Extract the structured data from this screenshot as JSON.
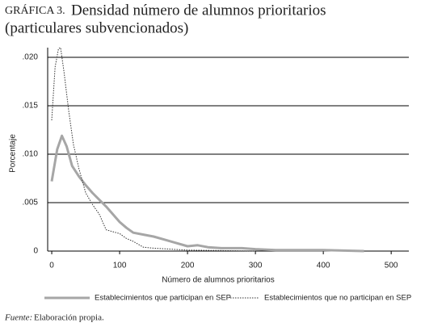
{
  "chart_data": {
    "type": "line",
    "label": "GRÁFICA 3.",
    "title": "Densidad número de alumnos prioritarios",
    "subtitle": "(particulares subvencionados)",
    "xlabel": "Número de alumnos prioritarios",
    "ylabel": "Porcentaje",
    "xlim": [
      -6,
      526
    ],
    "xticks": [
      0,
      100,
      200,
      300,
      400,
      500
    ],
    "ylim": [
      0,
      0.021
    ],
    "yticks": [
      0,
      {
        "value": 0.005,
        "label": ".005"
      },
      {
        "value": 0.01,
        "label": ".010"
      },
      {
        "value": 0.015,
        "label": ".015"
      },
      {
        "value": 0.02,
        "label": ".020"
      }
    ],
    "grid": true,
    "series": [
      {
        "name": "Establecimientos que participan en SEP",
        "color": "#a6a6a6",
        "style": "solid",
        "x": [
          0,
          8,
          15,
          22,
          30,
          40,
          50,
          60,
          70,
          80,
          90,
          100,
          110,
          120,
          135,
          150,
          165,
          180,
          200,
          215,
          230,
          250,
          280,
          300,
          330,
          350,
          400,
          430,
          460
        ],
        "values": [
          0.0072,
          0.0105,
          0.0119,
          0.0108,
          0.0088,
          0.0077,
          0.0068,
          0.006,
          0.0053,
          0.0046,
          0.0038,
          0.003,
          0.0024,
          0.0019,
          0.0017,
          0.0015,
          0.0012,
          0.0009,
          0.0005,
          0.0006,
          0.0004,
          0.0003,
          0.0003,
          0.0002,
          0.0001,
          0.0001,
          0.0001,
          5e-05,
          0.0
        ]
      },
      {
        "name": "Establecimientos que no participan en SEP",
        "color": "#333333",
        "style": "dotted",
        "x": [
          0,
          5,
          10,
          13,
          18,
          25,
          32,
          40,
          50,
          60,
          70,
          80,
          90,
          100,
          110,
          120,
          135,
          150,
          200,
          250,
          300
        ],
        "values": [
          0.0135,
          0.019,
          0.0209,
          0.021,
          0.0185,
          0.0145,
          0.011,
          0.0085,
          0.006,
          0.0048,
          0.0038,
          0.0022,
          0.002,
          0.0018,
          0.0013,
          0.001,
          0.0004,
          0.0003,
          0.0001,
          5e-05,
          0.0
        ]
      }
    ],
    "source_label": "Fuente:",
    "source": "Elaboración propia."
  }
}
